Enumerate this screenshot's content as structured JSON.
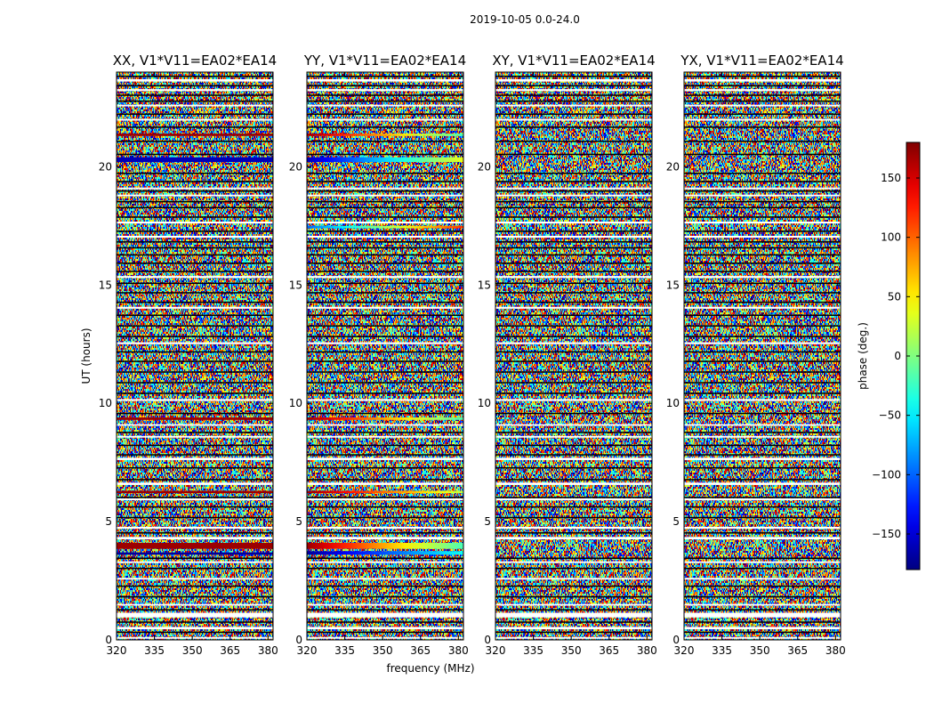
{
  "figure": {
    "title": "2019-10-05 0.0-24.0",
    "xlabel": "frequency (MHz)",
    "ylabel": "UT (hours)",
    "colorbar_label": "phase (deg.)",
    "colormap": "jet"
  },
  "chart_data": [
    {
      "type": "heatmap",
      "title": "XX, V1*V11=EA02*EA14",
      "xlim": [
        320,
        382
      ],
      "ylim": [
        0,
        24
      ],
      "x_ticks": [
        320,
        335,
        350,
        365,
        380
      ],
      "y_ticks": [
        0,
        5,
        10,
        15,
        20
      ],
      "value_range": [
        -180,
        180
      ],
      "coherent_bands": [
        {
          "ut": [
            3.6,
            3.7
          ],
          "phase_start": -170,
          "phase_end": -170
        },
        {
          "ut": [
            3.85,
            4.1
          ],
          "phase_start": 170,
          "phase_end": 170
        },
        {
          "ut": [
            6.2,
            6.3
          ],
          "phase_start": 170,
          "phase_end": 170
        },
        {
          "ut": [
            9.3,
            9.4
          ],
          "phase_start": 170,
          "phase_end": 170
        },
        {
          "ut": [
            20.2,
            20.4
          ],
          "phase_start": -160,
          "phase_end": -160
        },
        {
          "ut": [
            21.3,
            21.4
          ],
          "phase_start": 170,
          "phase_end": 170
        }
      ]
    },
    {
      "type": "heatmap",
      "title": "YY, V1*V11=EA02*EA14",
      "xlim": [
        320,
        382
      ],
      "ylim": [
        0,
        24
      ],
      "x_ticks": [
        320,
        335,
        350,
        365,
        380
      ],
      "y_ticks": [
        0,
        5,
        10,
        15,
        20
      ],
      "value_range": [
        -180,
        180
      ],
      "coherent_bands": [
        {
          "ut": [
            3.6,
            3.75
          ],
          "phase_start": -170,
          "phase_end": -40
        },
        {
          "ut": [
            3.85,
            4.1
          ],
          "phase_start": 170,
          "phase_end": -20
        },
        {
          "ut": [
            6.2,
            6.3
          ],
          "phase_start": 170,
          "phase_end": 20
        },
        {
          "ut": [
            9.3,
            9.4
          ],
          "phase_start": 170,
          "phase_end": -20
        },
        {
          "ut": [
            17.4,
            17.5
          ],
          "phase_start": -100,
          "phase_end": 120
        },
        {
          "ut": [
            20.2,
            20.4
          ],
          "phase_start": -160,
          "phase_end": 40
        },
        {
          "ut": [
            21.3,
            21.4
          ],
          "phase_start": 170,
          "phase_end": -20
        }
      ]
    },
    {
      "type": "heatmap",
      "title": "XY, V1*V11=EA02*EA14",
      "xlim": [
        320,
        382
      ],
      "ylim": [
        0,
        24
      ],
      "x_ticks": [
        320,
        335,
        350,
        365,
        380
      ],
      "y_ticks": [
        0,
        5,
        10,
        15,
        20
      ],
      "value_range": [
        -180,
        180
      ],
      "coherent_bands": []
    },
    {
      "type": "heatmap",
      "title": "YX, V1*V11=EA02*EA14",
      "xlim": [
        320,
        382
      ],
      "ylim": [
        0,
        24
      ],
      "x_ticks": [
        320,
        335,
        350,
        365,
        380
      ],
      "y_ticks": [
        0,
        5,
        10,
        15,
        20
      ],
      "value_range": [
        -180,
        180
      ],
      "coherent_bands": []
    }
  ],
  "colorbar": {
    "ticks": [
      150,
      100,
      50,
      0,
      -50,
      -100,
      -150
    ],
    "tick_labels": [
      "150",
      "100",
      "50",
      "0",
      "−50",
      "−100",
      "−150"
    ],
    "range": [
      -180,
      180
    ]
  },
  "flagged_ut_ranges": [
    [
      0.05,
      0.12
    ],
    [
      0.45,
      0.55
    ],
    [
      0.95,
      1.15
    ],
    [
      1.45,
      1.52
    ],
    [
      2.55,
      2.62
    ],
    [
      3.25,
      3.32
    ],
    [
      4.25,
      4.35
    ],
    [
      4.7,
      4.78
    ],
    [
      5.9,
      5.98
    ],
    [
      6.55,
      6.65
    ],
    [
      7.6,
      7.7
    ],
    [
      8.55,
      8.62
    ],
    [
      9.05,
      9.12
    ],
    [
      10.1,
      10.18
    ],
    [
      12.5,
      12.58
    ],
    [
      14.0,
      14.08
    ],
    [
      15.3,
      15.38
    ],
    [
      17.0,
      17.08
    ],
    [
      17.6,
      17.68
    ],
    [
      18.75,
      18.82
    ],
    [
      19.05,
      19.12
    ],
    [
      21.95,
      22.02
    ],
    [
      22.55,
      22.62
    ],
    [
      23.2,
      23.28
    ],
    [
      23.6,
      23.7
    ]
  ],
  "black_ut_lines": [
    0.35,
    0.78,
    1.3,
    1.85,
    2.3,
    3.05,
    3.48,
    4.55,
    5.2,
    5.65,
    6.05,
    6.8,
    7.3,
    7.85,
    8.25,
    8.8,
    9.6,
    10.45,
    10.9,
    11.35,
    11.8,
    12.2,
    12.85,
    13.3,
    13.75,
    14.3,
    14.7,
    15.1,
    15.6,
    15.95,
    16.3,
    16.6,
    16.85,
    17.3,
    17.9,
    18.3,
    18.55,
    19.0,
    19.4,
    19.75,
    20.55,
    21.1,
    21.7,
    22.25,
    22.8,
    23.05,
    23.45,
    23.85
  ]
}
